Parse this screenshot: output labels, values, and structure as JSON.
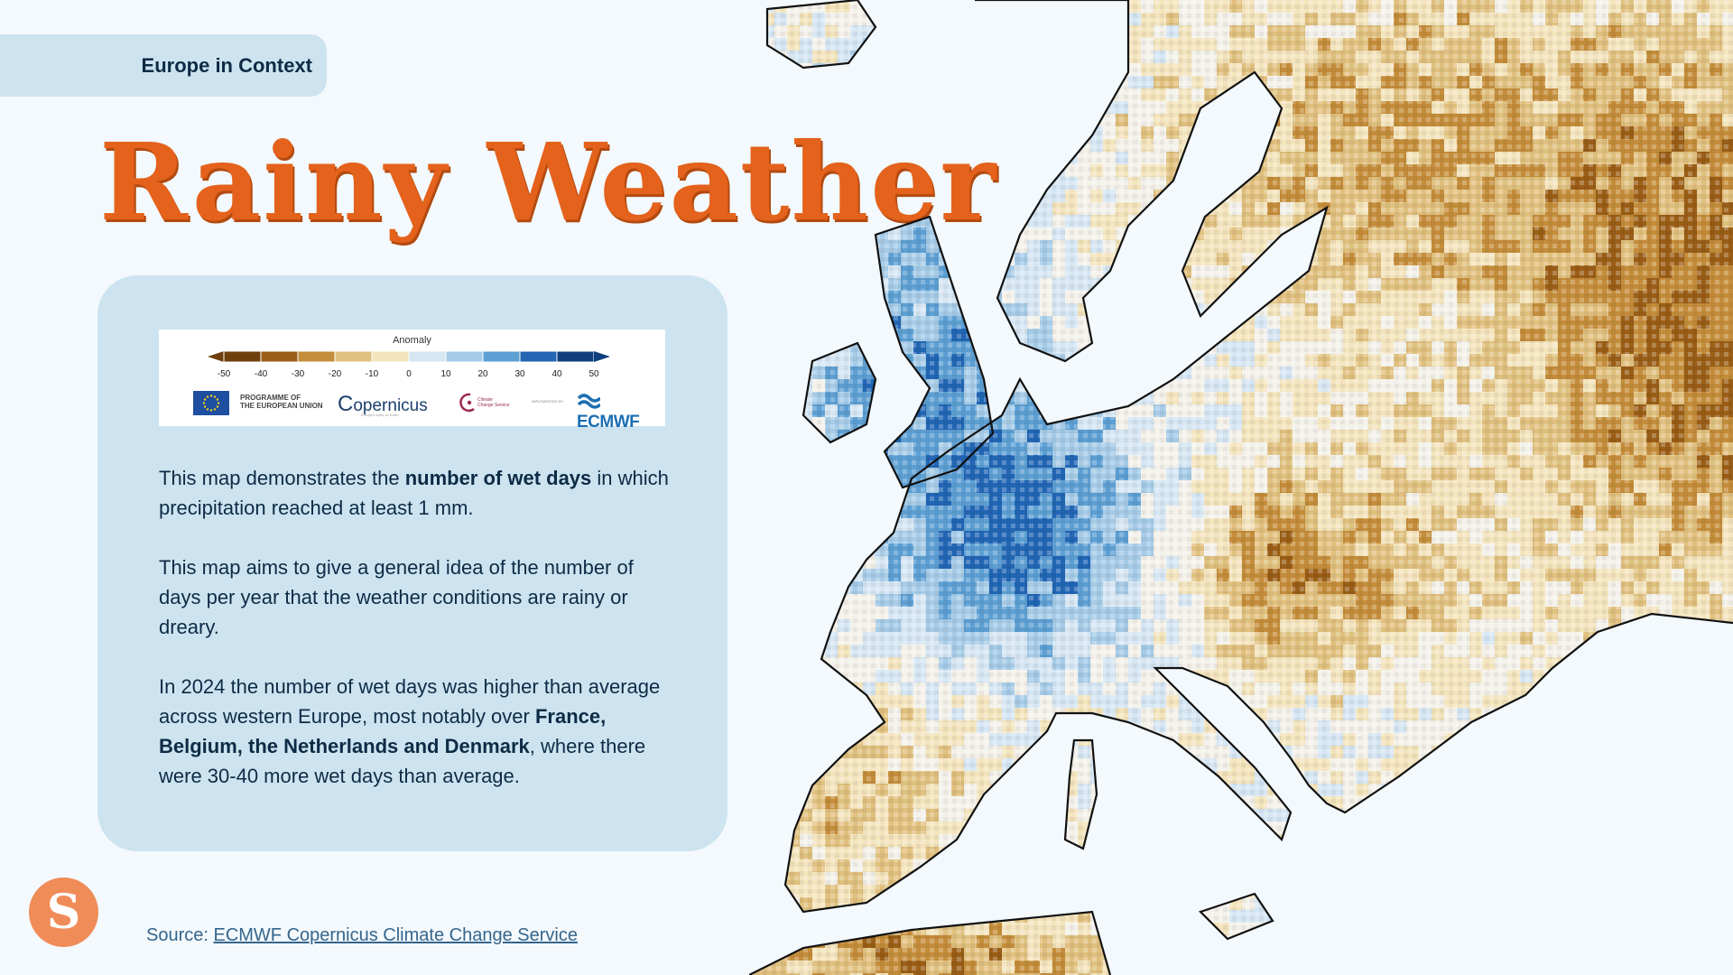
{
  "header": {
    "tag_label": "Europe in Context",
    "title": "Rainy Weather"
  },
  "legend": {
    "title": "Anomaly",
    "ticks": [
      "-50",
      "-40",
      "-30",
      "-20",
      "-10",
      "0",
      "10",
      "20",
      "30",
      "40",
      "50"
    ],
    "colors": [
      "#6e3f0c",
      "#9a5e17",
      "#c48d3b",
      "#e0c07f",
      "#f3e4bd",
      "#f3f1ea",
      "#d6e6f3",
      "#a6cbe7",
      "#5d9fd3",
      "#2266b4",
      "#0f3f7d"
    ],
    "logos": {
      "eu_line1": "PROGRAMME OF",
      "eu_line2": "THE EUROPEAN UNION",
      "copernicus": "opernicus",
      "copernicus_sub": "Europe's eyes on Earth",
      "c3s_line1": "Climate",
      "c3s_line2": "Change Service",
      "implemented": "IMPLEMENTED BY",
      "ecmwf": "ECMWF"
    }
  },
  "text": {
    "p1_a": "This map demonstrates the ",
    "p1_bold": "number of wet days",
    "p1_b": " in which precipitation reached at least 1 mm.",
    "p2": "This map aims to give a general idea of the number of days per year that the weather conditions are rainy or dreary.",
    "p3_a": "In 2024 the number of wet days was higher than average across western Europe, most notably over ",
    "p3_bold": "France, Belgium, the Netherlands and Denmark",
    "p3_b": ", where there were 30-40 more wet days than average."
  },
  "footer": {
    "logo_letter": "S",
    "source_label": "Source: ",
    "source_link": "ECMWF Copernicus Climate Change Service"
  },
  "colors": {
    "accent": "#e4621c",
    "panel": "#cde4f0",
    "background": "#f3f9fd",
    "text": "#0d2b45"
  }
}
